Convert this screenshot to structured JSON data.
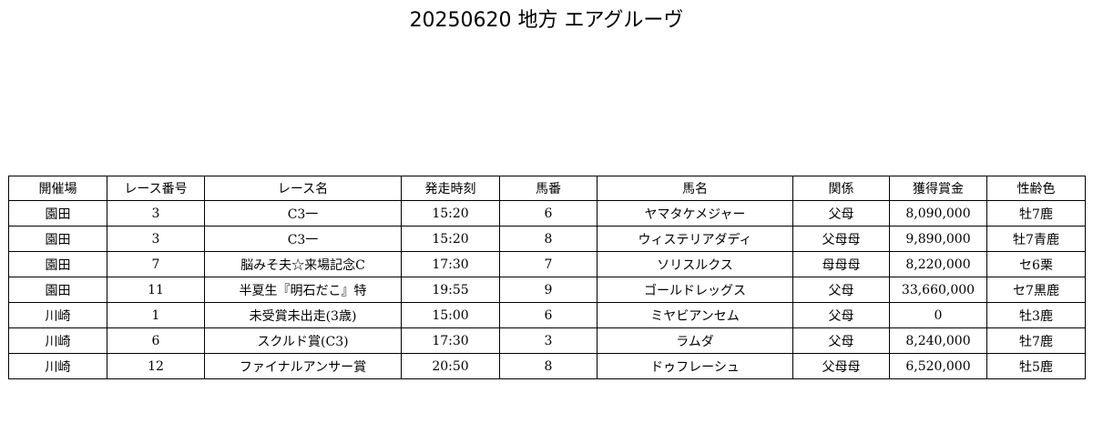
{
  "title": "20250620 地方 エアグルーヴ",
  "table": {
    "headers": [
      "開催場",
      "レース番号",
      "レース名",
      "発走時刻",
      "馬番",
      "馬名",
      "関係",
      "獲得賞金",
      "性齢色"
    ],
    "rows": [
      [
        "園田",
        "3",
        "C3一",
        "15:20",
        "6",
        "ヤマタケメジャー",
        "父母",
        "8,090,000",
        "牡7鹿"
      ],
      [
        "園田",
        "3",
        "C3一",
        "15:20",
        "8",
        "ウィステリアダディ",
        "父母母",
        "9,890,000",
        "牡7青鹿"
      ],
      [
        "園田",
        "7",
        "脳みそ夫☆来場記念C",
        "17:30",
        "7",
        "ソリスルクス",
        "母母母",
        "8,220,000",
        "セ6栗"
      ],
      [
        "園田",
        "11",
        "半夏生『明石だこ』特",
        "19:55",
        "9",
        "ゴールドレッグス",
        "父母",
        "33,660,000",
        "セ7黒鹿"
      ],
      [
        "川崎",
        "1",
        "未受賞未出走(3歳)",
        "15:00",
        "6",
        "ミヤビアンセム",
        "父母",
        "0",
        "牡3鹿"
      ],
      [
        "川崎",
        "6",
        "スクルド賞(C3)",
        "17:30",
        "3",
        "ラムダ",
        "父母",
        "8,240,000",
        "牡7鹿"
      ],
      [
        "川崎",
        "12",
        "ファイナルアンサー賞",
        "20:50",
        "8",
        "ドゥフレーシュ",
        "父母母",
        "6,520,000",
        "牡5鹿"
      ]
    ]
  }
}
